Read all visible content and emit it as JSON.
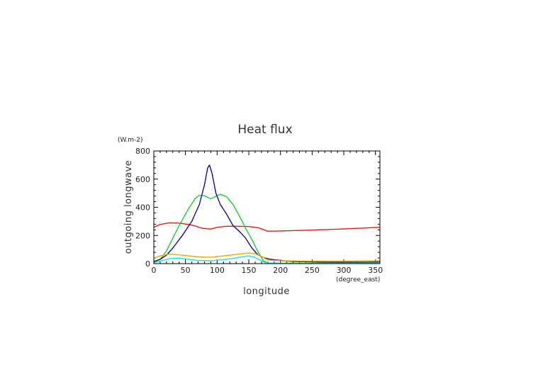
{
  "chart_data": {
    "type": "line",
    "title": "Heat flux",
    "xlabel": "longitude",
    "ylabel": "outgoing longwave",
    "xunit": "(degree_east)",
    "yunit": "(W.m-2)",
    "xlim": [
      0,
      357
    ],
    "ylim": [
      0,
      800
    ],
    "xticks": [
      0,
      50,
      100,
      150,
      200,
      250,
      300,
      350
    ],
    "yticks": [
      0,
      200,
      400,
      600,
      800
    ],
    "grid": false,
    "series": [
      {
        "color": "#e0201a",
        "points": [
          [
            0,
            258
          ],
          [
            10,
            278
          ],
          [
            25,
            290
          ],
          [
            40,
            288
          ],
          [
            55,
            278
          ],
          [
            65,
            268
          ],
          [
            75,
            252
          ],
          [
            90,
            245
          ],
          [
            100,
            258
          ],
          [
            115,
            265
          ],
          [
            130,
            265
          ],
          [
            150,
            263
          ],
          [
            165,
            255
          ],
          [
            180,
            230
          ],
          [
            200,
            232
          ],
          [
            250,
            238
          ],
          [
            300,
            246
          ],
          [
            357,
            258
          ]
        ]
      },
      {
        "color": "#1ec83c",
        "points": [
          [
            0,
            10
          ],
          [
            10,
            30
          ],
          [
            20,
            90
          ],
          [
            30,
            180
          ],
          [
            40,
            270
          ],
          [
            55,
            390
          ],
          [
            65,
            460
          ],
          [
            72,
            485
          ],
          [
            80,
            482
          ],
          [
            90,
            460
          ],
          [
            98,
            478
          ],
          [
            105,
            492
          ],
          [
            115,
            475
          ],
          [
            125,
            420
          ],
          [
            135,
            340
          ],
          [
            145,
            250
          ],
          [
            155,
            170
          ],
          [
            165,
            80
          ],
          [
            173,
            20
          ],
          [
            180,
            4
          ],
          [
            200,
            2
          ],
          [
            250,
            2
          ],
          [
            300,
            3
          ],
          [
            357,
            6
          ]
        ]
      },
      {
        "color": "#10108a",
        "points": [
          [
            0,
            15
          ],
          [
            10,
            30
          ],
          [
            20,
            60
          ],
          [
            30,
            110
          ],
          [
            45,
            200
          ],
          [
            60,
            300
          ],
          [
            72,
            420
          ],
          [
            80,
            560
          ],
          [
            85,
            680
          ],
          [
            88,
            700
          ],
          [
            92,
            640
          ],
          [
            98,
            500
          ],
          [
            105,
            420
          ],
          [
            115,
            350
          ],
          [
            125,
            270
          ],
          [
            135,
            230
          ],
          [
            145,
            180
          ],
          [
            155,
            110
          ],
          [
            165,
            60
          ],
          [
            175,
            40
          ],
          [
            185,
            30
          ],
          [
            200,
            22
          ],
          [
            220,
            15
          ],
          [
            250,
            12
          ],
          [
            280,
            10
          ],
          [
            300,
            10
          ],
          [
            330,
            10
          ],
          [
            357,
            12
          ]
        ]
      },
      {
        "color": "#f0a800",
        "points": [
          [
            0,
            38
          ],
          [
            10,
            55
          ],
          [
            25,
            68
          ],
          [
            40,
            62
          ],
          [
            55,
            55
          ],
          [
            70,
            48
          ],
          [
            90,
            45
          ],
          [
            110,
            55
          ],
          [
            130,
            65
          ],
          [
            150,
            75
          ],
          [
            160,
            70
          ],
          [
            170,
            50
          ],
          [
            180,
            25
          ],
          [
            200,
            20
          ],
          [
            250,
            18
          ],
          [
            300,
            18
          ],
          [
            357,
            20
          ]
        ]
      },
      {
        "color": "#20e0e8",
        "points": [
          [
            0,
            5
          ],
          [
            10,
            18
          ],
          [
            25,
            35
          ],
          [
            40,
            40
          ],
          [
            55,
            30
          ],
          [
            70,
            22
          ],
          [
            90,
            20
          ],
          [
            110,
            28
          ],
          [
            130,
            40
          ],
          [
            148,
            55
          ],
          [
            158,
            48
          ],
          [
            168,
            25
          ],
          [
            175,
            8
          ],
          [
            185,
            3
          ],
          [
            250,
            3
          ],
          [
            300,
            3
          ],
          [
            357,
            5
          ]
        ]
      }
    ]
  }
}
